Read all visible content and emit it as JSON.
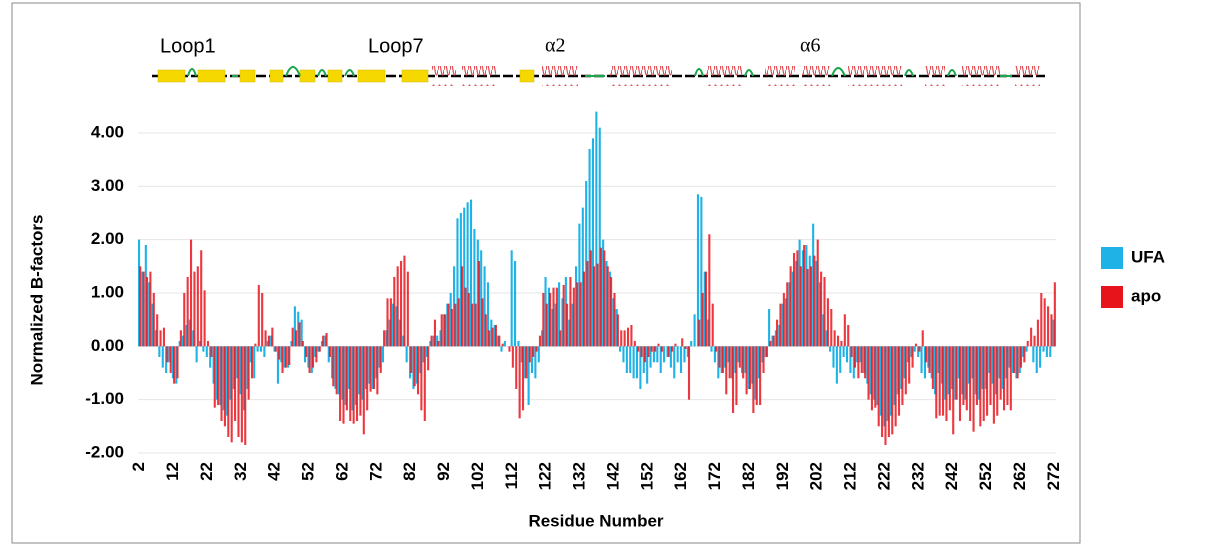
{
  "chart_data": {
    "type": "bar",
    "x_label": "Residue Number",
    "y_label": "Normalized B-factors",
    "annotations": [
      "Loop1",
      "Loop7",
      "α2",
      "α6"
    ],
    "x": [
      2,
      3,
      4,
      5,
      6,
      7,
      8,
      9,
      10,
      11,
      12,
      13,
      14,
      15,
      16,
      17,
      18,
      19,
      20,
      21,
      22,
      23,
      24,
      25,
      26,
      27,
      28,
      29,
      30,
      31,
      32,
      33,
      34,
      35,
      36,
      37,
      38,
      39,
      40,
      41,
      42,
      43,
      44,
      45,
      46,
      47,
      48,
      49,
      50,
      51,
      52,
      53,
      54,
      55,
      56,
      57,
      58,
      59,
      60,
      61,
      62,
      63,
      64,
      65,
      66,
      67,
      68,
      69,
      70,
      71,
      72,
      73,
      74,
      75,
      76,
      77,
      78,
      79,
      80,
      81,
      82,
      83,
      84,
      85,
      86,
      87,
      88,
      89,
      90,
      91,
      92,
      93,
      94,
      95,
      96,
      97,
      98,
      99,
      100,
      101,
      102,
      103,
      104,
      105,
      106,
      107,
      108,
      109,
      110,
      111,
      112,
      113,
      114,
      115,
      116,
      117,
      118,
      119,
      120,
      121,
      122,
      123,
      124,
      125,
      126,
      127,
      128,
      129,
      130,
      131,
      132,
      133,
      134,
      135,
      136,
      137,
      138,
      139,
      140,
      141,
      142,
      143,
      144,
      145,
      146,
      147,
      148,
      149,
      150,
      151,
      152,
      153,
      154,
      155,
      156,
      157,
      158,
      159,
      160,
      161,
      162,
      163,
      164,
      165,
      166,
      167,
      168,
      169,
      170,
      171,
      172,
      173,
      174,
      175,
      176,
      177,
      178,
      179,
      180,
      181,
      182,
      183,
      184,
      185,
      186,
      187,
      188,
      189,
      190,
      191,
      192,
      193,
      194,
      195,
      196,
      197,
      198,
      199,
      200,
      201,
      202,
      203,
      204,
      205,
      206,
      207,
      208,
      209,
      210,
      211,
      212,
      213,
      214,
      215,
      216,
      217,
      218,
      219,
      220,
      221,
      222,
      223,
      224,
      225,
      226,
      227,
      228,
      229,
      230,
      231,
      232,
      233,
      234,
      235,
      236,
      237,
      238,
      239,
      240,
      241,
      242,
      243,
      244,
      245,
      246,
      247,
      248,
      249,
      250,
      251,
      252,
      253,
      254,
      255,
      256,
      257,
      258,
      259,
      260,
      261,
      262,
      263,
      264,
      265,
      266,
      267,
      268,
      269,
      270,
      271,
      272
    ],
    "series": [
      {
        "name": "UFA",
        "color": "#1eb2e6",
        "values": [
          2.0,
          1.4,
          1.9,
          1.2,
          0.8,
          0.3,
          -0.2,
          -0.4,
          -0.5,
          -0.3,
          -0.6,
          -0.7,
          0.1,
          0.2,
          0.4,
          0.5,
          0.3,
          -0.3,
          0.1,
          -0.1,
          -0.2,
          -0.4,
          -0.7,
          -1.0,
          -1.1,
          -1.2,
          -1.3,
          -1.0,
          -0.8,
          -0.6,
          -0.9,
          -1.2,
          -0.8,
          -0.3,
          -0.6,
          -0.1,
          -0.1,
          -0.2,
          0.1,
          0.2,
          -0.1,
          -0.7,
          -0.3,
          -0.4,
          -0.4,
          0.1,
          0.75,
          0.65,
          0.5,
          -0.3,
          -0.4,
          -0.5,
          -0.2,
          -0.1,
          0.1,
          0.2,
          -0.3,
          -0.6,
          -0.8,
          -0.9,
          -1.0,
          -1.1,
          -0.8,
          -1.2,
          -1.1,
          -0.9,
          -1.0,
          -0.8,
          -0.7,
          -0.8,
          -0.6,
          -0.4,
          -0.3,
          0.3,
          0.5,
          0.8,
          0.75,
          0.5,
          0.2,
          -0.3,
          -0.6,
          -0.8,
          -0.7,
          -0.5,
          -0.3,
          -0.2,
          0.1,
          0.2,
          0.2,
          0.3,
          0.6,
          0.8,
          1.0,
          1.5,
          2.4,
          2.5,
          2.6,
          2.7,
          2.75,
          2.2,
          2.0,
          1.8,
          1.5,
          1.2,
          0.5,
          0.4,
          0.2,
          -0.1,
          0.1,
          0.0,
          1.8,
          1.6,
          0.1,
          -0.3,
          -0.6,
          -1.1,
          -0.5,
          -0.6,
          -0.3,
          0.3,
          1.3,
          1.1,
          0.7,
          0.8,
          1.2,
          0.9,
          1.3,
          0.5,
          0.8,
          1.5,
          2.3,
          2.6,
          3.1,
          3.7,
          3.9,
          4.4,
          4.1,
          2.0,
          1.6,
          1.4,
          0.9,
          0.7,
          -0.1,
          -0.3,
          -0.5,
          -0.5,
          -0.6,
          -0.6,
          -0.8,
          -0.5,
          -0.7,
          -0.4,
          -0.3,
          -0.3,
          -0.5,
          -0.3,
          -0.2,
          -0.4,
          -0.6,
          -0.3,
          -0.5,
          -0.3,
          -0.2,
          0.1,
          0.6,
          2.85,
          2.8,
          1.4,
          0.5,
          -0.1,
          -0.3,
          -0.6,
          -0.5,
          -0.4,
          -0.3,
          -0.6,
          -0.5,
          -0.3,
          -0.5,
          -0.5,
          -0.8,
          -0.7,
          -1.0,
          -0.6,
          -0.3,
          -0.2,
          0.7,
          0.2,
          0.3,
          0.4,
          0.8,
          0.9,
          1.2,
          1.4,
          1.6,
          2.0,
          1.8,
          1.9,
          1.7,
          2.3,
          1.6,
          1.2,
          0.6,
          0.3,
          -0.1,
          -0.4,
          -0.7,
          -0.5,
          -0.2,
          -0.3,
          -0.5,
          -0.6,
          -0.3,
          -0.3,
          -0.5,
          -0.7,
          -0.9,
          -1.0,
          -1.1,
          -1.3,
          -1.5,
          -1.4,
          -1.3,
          -1.1,
          -0.9,
          -0.8,
          -0.6,
          -0.3,
          -0.2,
          -0.1,
          -0.2,
          -0.5,
          -0.6,
          -0.4,
          -0.6,
          -0.9,
          -0.5,
          -0.7,
          -1.0,
          -0.9,
          -0.8,
          -1.0,
          -0.6,
          -0.9,
          -1.0,
          -0.7,
          -0.6,
          -0.9,
          -1.0,
          -0.8,
          -0.8,
          -0.5,
          -0.7,
          -0.9,
          -0.6,
          -0.8,
          -0.6,
          -0.4,
          -0.5,
          -0.6,
          -0.5,
          -0.2,
          -0.1,
          0.0,
          -0.3,
          -0.5,
          -0.4,
          -0.1,
          -0.2,
          -0.2,
          0.5
        ]
      },
      {
        "name": "apo",
        "color": "#e8141c",
        "values": [
          1.5,
          1.4,
          1.3,
          1.4,
          1.0,
          0.6,
          0.3,
          0.35,
          -0.3,
          -0.5,
          -0.7,
          -0.6,
          0.3,
          1.0,
          1.3,
          2.0,
          1.4,
          1.5,
          1.8,
          1.05,
          0.1,
          -0.2,
          -1.15,
          -1.1,
          -1.4,
          -1.5,
          -1.7,
          -1.8,
          -1.4,
          -1.7,
          -1.8,
          -1.85,
          -1.0,
          -0.6,
          0.05,
          1.15,
          1.0,
          0.3,
          0.2,
          0.35,
          -0.1,
          -0.25,
          -0.5,
          -0.4,
          -0.35,
          0.35,
          0.3,
          0.45,
          0.1,
          -0.2,
          -0.5,
          -0.4,
          -0.3,
          -0.1,
          0.2,
          0.25,
          -0.2,
          -0.75,
          -0.9,
          -1.4,
          -1.45,
          -1.2,
          -1.4,
          -1.45,
          -1.4,
          -1.3,
          -1.65,
          -1.2,
          -0.85,
          -0.8,
          -0.9,
          -0.5,
          0.3,
          0.9,
          0.9,
          1.3,
          1.5,
          1.6,
          1.7,
          1.4,
          -0.5,
          -0.75,
          -0.9,
          -1.2,
          -1.4,
          -0.45,
          0.2,
          0.5,
          0.1,
          0.6,
          0.6,
          0.8,
          0.7,
          0.8,
          0.9,
          1.5,
          1.1,
          1.0,
          0.8,
          0.8,
          1.6,
          0.9,
          0.6,
          0.3,
          0.35,
          0.4,
          0.2,
          0.05,
          0.0,
          -0.1,
          -0.4,
          -0.8,
          -1.35,
          -1.2,
          -0.6,
          -0.3,
          -0.2,
          -0.1,
          0.2,
          1.0,
          0.8,
          1.0,
          1.1,
          1.1,
          0.3,
          1.15,
          0.8,
          1.3,
          1.1,
          1.2,
          1.2,
          1.4,
          1.6,
          1.8,
          1.5,
          1.55,
          1.85,
          1.8,
          1.5,
          1.3,
          1.0,
          0.6,
          0.3,
          0.3,
          0.35,
          0.4,
          0.1,
          -0.1,
          -0.2,
          -0.3,
          -0.2,
          -0.1,
          -0.1,
          0.05,
          -0.1,
          0.0,
          -0.2,
          -0.1,
          0.05,
          0.0,
          0.15,
          -0.05,
          -1.0,
          0.0,
          0.0,
          0.5,
          1.0,
          1.4,
          2.1,
          0.8,
          -0.1,
          -0.4,
          -0.5,
          -0.9,
          -0.6,
          -1.25,
          -1.1,
          -0.4,
          -0.6,
          -0.9,
          -0.8,
          -1.25,
          -1.1,
          -1.1,
          -0.5,
          -0.2,
          0.1,
          0.2,
          0.5,
          0.8,
          1.0,
          1.2,
          1.5,
          1.75,
          1.8,
          1.5,
          1.9,
          1.45,
          1.5,
          1.7,
          2.0,
          1.4,
          1.3,
          0.9,
          0.7,
          0.3,
          0.2,
          0.1,
          0.6,
          0.4,
          -0.2,
          -0.4,
          -0.6,
          -0.5,
          -0.6,
          -1.0,
          -1.2,
          -1.15,
          -1.5,
          -1.7,
          -1.85,
          -1.7,
          -1.65,
          -1.5,
          -1.3,
          -1.1,
          -0.9,
          -0.7,
          -0.4,
          0.05,
          -0.1,
          0.3,
          -0.3,
          -0.5,
          -0.8,
          -1.35,
          -1.3,
          -1.3,
          -1.4,
          -1.2,
          -1.65,
          -1.0,
          -1.4,
          -1.1,
          -1.2,
          -1.4,
          -1.6,
          -1.1,
          -1.5,
          -1.4,
          -1.3,
          -1.1,
          -1.45,
          -1.3,
          -1.0,
          -1.2,
          -1.1,
          -1.2,
          -0.5,
          -0.6,
          -0.4,
          -0.3,
          0.1,
          0.35,
          0.2,
          0.5,
          1.0,
          0.9,
          0.75,
          0.6,
          1.2
        ]
      }
    ],
    "xlim": [
      1.5,
      272.5
    ],
    "xticks": [
      2,
      12,
      22,
      32,
      42,
      52,
      62,
      72,
      82,
      92,
      102,
      112,
      122,
      132,
      142,
      152,
      162,
      172,
      182,
      192,
      202,
      212,
      222,
      232,
      242,
      252,
      262,
      272
    ],
    "ylim": [
      -2,
      4.5
    ],
    "yticks": [
      {
        "value": -2,
        "label": "-2.00"
      },
      {
        "value": -1,
        "label": "-1.00"
      },
      {
        "value": 0,
        "label": "0.00"
      },
      {
        "value": 1,
        "label": "1.00"
      },
      {
        "value": 2,
        "label": "2.00"
      },
      {
        "value": 3,
        "label": "3.00"
      },
      {
        "value": 4,
        "label": "4.00"
      }
    ],
    "grid": true
  }
}
